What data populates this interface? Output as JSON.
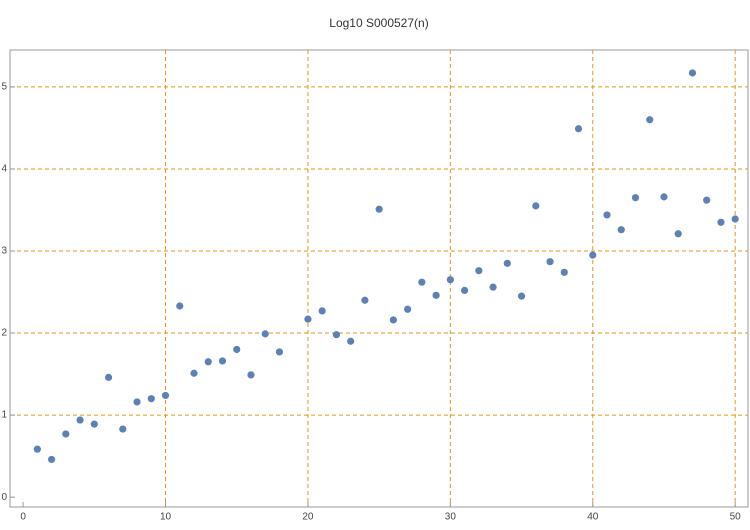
{
  "chart_data": {
    "type": "scatter",
    "title": "Log10 S000527(n)",
    "x": [
      1,
      2,
      3,
      4,
      5,
      6,
      7,
      8,
      9,
      10,
      11,
      12,
      13,
      14,
      15,
      16,
      17,
      18,
      20,
      21,
      22,
      23,
      24,
      25,
      26,
      27,
      28,
      29,
      30,
      31,
      32,
      33,
      34,
      35,
      36,
      37,
      38,
      39,
      40,
      41,
      42,
      43,
      44,
      45,
      46,
      47,
      48,
      49,
      50
    ],
    "values": [
      0.585,
      0.46,
      0.77,
      0.94,
      0.89,
      1.46,
      0.83,
      1.16,
      1.2,
      1.24,
      2.33,
      1.51,
      1.65,
      1.66,
      1.8,
      1.49,
      1.99,
      1.77,
      2.17,
      2.27,
      1.98,
      1.9,
      2.4,
      3.51,
      2.16,
      2.29,
      2.62,
      2.46,
      2.65,
      2.52,
      2.76,
      2.56,
      2.85,
      2.45,
      3.55,
      2.87,
      2.74,
      4.49,
      2.95,
      3.44,
      3.26,
      3.65,
      4.6,
      3.66,
      3.21,
      5.17,
      3.62,
      3.35,
      3.39
    ],
    "color": "#5e81b5",
    "xlim": [
      -0.92,
      50.9
    ],
    "ylim": [
      -0.12,
      5.45
    ],
    "xticks": [
      0,
      10,
      20,
      30,
      40,
      50
    ],
    "yticks": [
      0,
      1,
      2,
      3,
      4,
      5
    ],
    "xgrid": [
      10,
      20,
      30,
      40,
      50
    ],
    "ygrid": [
      1,
      2,
      3,
      4,
      5
    ],
    "grid_color": "#e0961a"
  }
}
